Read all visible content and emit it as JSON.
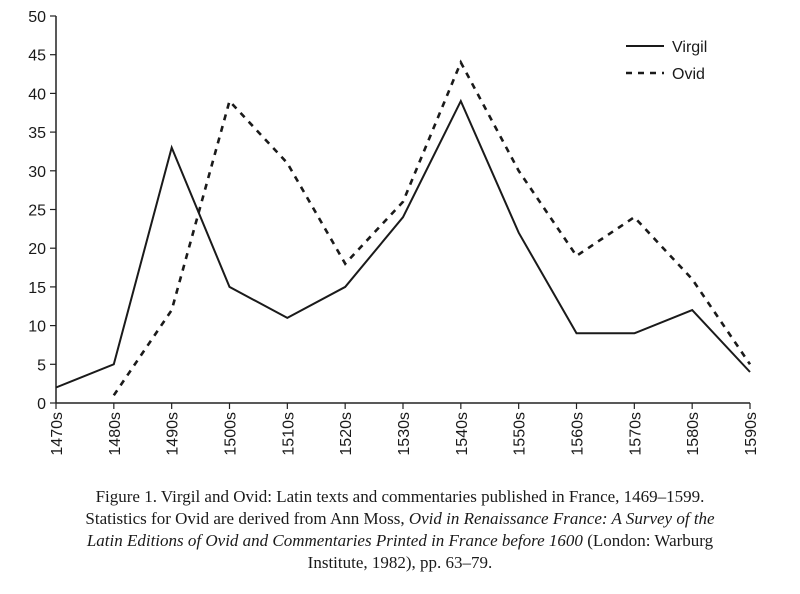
{
  "chart_data": {
    "type": "line",
    "categories": [
      "1470s",
      "1480s",
      "1490s",
      "1500s",
      "1510s",
      "1520s",
      "1530s",
      "1540s",
      "1550s",
      "1560s",
      "1570s",
      "1580s",
      "1590s"
    ],
    "series": [
      {
        "name": "Virgil",
        "style": "solid",
        "color": "#1a1a1a",
        "values": [
          2,
          5,
          33,
          15,
          11,
          15,
          24,
          39,
          22,
          9,
          9,
          12,
          4
        ]
      },
      {
        "name": "Ovid",
        "style": "dashed",
        "color": "#1a1a1a",
        "values": [
          null,
          1,
          12,
          39,
          31,
          18,
          26,
          44,
          30,
          19,
          24,
          16,
          5
        ]
      }
    ],
    "ylim": [
      0,
      50
    ],
    "yticks": [
      0,
      5,
      10,
      15,
      20,
      25,
      30,
      35,
      40,
      45,
      50
    ],
    "xlabel": "",
    "ylabel": "",
    "grid": false,
    "legend_position": "top-right"
  },
  "caption": {
    "line1": "Figure 1.  Virgil and Ovid: Latin texts and commentaries published in France, 1469–1599.",
    "line2_a": "Statistics for Ovid are derived from Ann Moss, ",
    "line2_b": "Ovid in Renaissance France: A Survey of the",
    "line3_a": "Latin Editions of Ovid and Commentaries Printed in France before 1600",
    "line3_b": " (London: Warburg",
    "line4": "Institute, 1982), pp. 63–79."
  }
}
